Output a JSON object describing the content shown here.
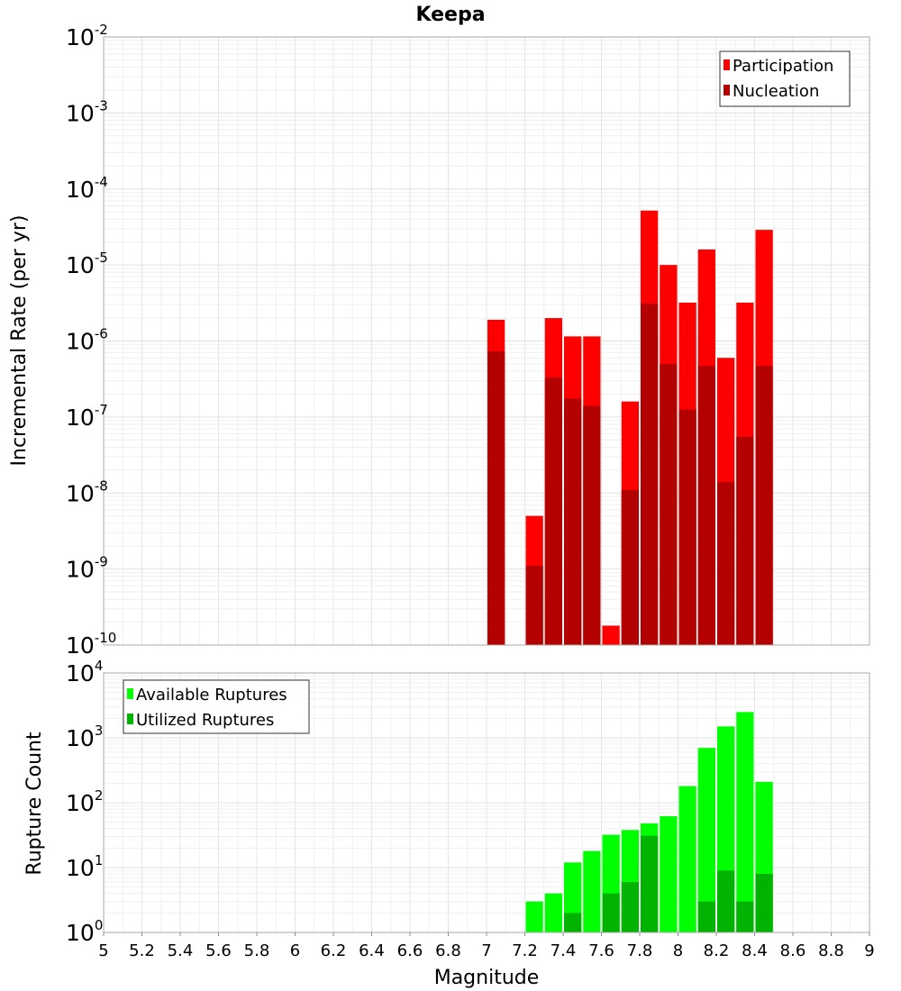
{
  "chart_data": [
    {
      "type": "bar",
      "title": "Keepa",
      "xlabel": "",
      "ylabel": "Incremental Rate (per yr)",
      "yscale": "log",
      "ylim": [
        1e-10,
        0.01
      ],
      "xlim": [
        5,
        9
      ],
      "bin_width": 0.1,
      "grid": true,
      "legend_position": "top-right",
      "y_ticks": [
        {
          "base": "10",
          "exp": "-10",
          "value": 1e-10
        },
        {
          "base": "10",
          "exp": "-9",
          "value": 1e-09
        },
        {
          "base": "10",
          "exp": "-8",
          "value": 1e-08
        },
        {
          "base": "10",
          "exp": "-7",
          "value": 1e-07
        },
        {
          "base": "10",
          "exp": "-6",
          "value": 1e-06
        },
        {
          "base": "10",
          "exp": "-5",
          "value": 1e-05
        },
        {
          "base": "10",
          "exp": "-4",
          "value": 0.0001
        },
        {
          "base": "10",
          "exp": "-3",
          "value": 0.001
        },
        {
          "base": "10",
          "exp": "-2",
          "value": 0.01
        }
      ],
      "series": [
        {
          "name": "Participation",
          "color": "#ff0000",
          "x": [
            7.05,
            7.25,
            7.35,
            7.45,
            7.55,
            7.65,
            7.75,
            7.85,
            7.95,
            8.05,
            8.15,
            8.25,
            8.35,
            8.45
          ],
          "values": [
            1.9e-06,
            5e-09,
            2e-06,
            1.15e-06,
            1.15e-06,
            1.8e-10,
            1.6e-07,
            5.2e-05,
            1e-05,
            3.2e-06,
            1.6e-05,
            6e-07,
            3.2e-06,
            2.9e-05
          ]
        },
        {
          "name": "Nucleation",
          "color": "#b30000",
          "x": [
            7.05,
            7.25,
            7.35,
            7.45,
            7.55,
            7.75,
            7.85,
            7.95,
            8.05,
            8.15,
            8.25,
            8.35,
            8.45
          ],
          "values": [
            7.3e-07,
            1.1e-09,
            3.3e-07,
            1.75e-07,
            1.4e-07,
            1.1e-08,
            3.1e-06,
            5e-07,
            1.25e-07,
            4.7e-07,
            1.4e-08,
            5.5e-08,
            4.7e-07
          ]
        }
      ]
    },
    {
      "type": "bar",
      "title": "",
      "xlabel": "Magnitude",
      "ylabel": "Rupture Count",
      "yscale": "log",
      "ylim": [
        1,
        10000
      ],
      "xlim": [
        5,
        9
      ],
      "bin_width": 0.1,
      "grid": true,
      "legend_position": "top-left",
      "x_ticks": [
        "5",
        "5.2",
        "5.4",
        "5.6",
        "5.8",
        "6",
        "6.2",
        "6.4",
        "6.6",
        "6.8",
        "7",
        "7.2",
        "7.4",
        "7.6",
        "7.8",
        "8",
        "8.2",
        "8.4",
        "8.6",
        "8.8",
        "9"
      ],
      "y_ticks": [
        {
          "base": "10",
          "exp": "0",
          "value": 1
        },
        {
          "base": "10",
          "exp": "1",
          "value": 10
        },
        {
          "base": "10",
          "exp": "2",
          "value": 100
        },
        {
          "base": "10",
          "exp": "3",
          "value": 1000
        },
        {
          "base": "10",
          "exp": "4",
          "value": 10000
        }
      ],
      "series": [
        {
          "name": "Available Ruptures",
          "color": "#00ff00",
          "x": [
            6.65,
            7.05,
            7.25,
            7.35,
            7.45,
            7.55,
            7.65,
            7.75,
            7.85,
            7.95,
            8.05,
            8.15,
            8.25,
            8.35,
            8.45
          ],
          "values": [
            1,
            1,
            3,
            4,
            12,
            18,
            32,
            38,
            48,
            62,
            180,
            700,
            1500,
            2500,
            210
          ]
        },
        {
          "name": "Utilized Ruptures",
          "color": "#00b300",
          "x": [
            7.05,
            7.25,
            7.35,
            7.45,
            7.55,
            7.65,
            7.75,
            7.85,
            7.95,
            8.05,
            8.15,
            8.25,
            8.35,
            8.45
          ],
          "values": [
            1,
            1,
            1,
            2,
            1,
            4,
            6,
            31,
            1,
            1,
            3,
            9,
            3,
            8
          ]
        }
      ]
    }
  ]
}
